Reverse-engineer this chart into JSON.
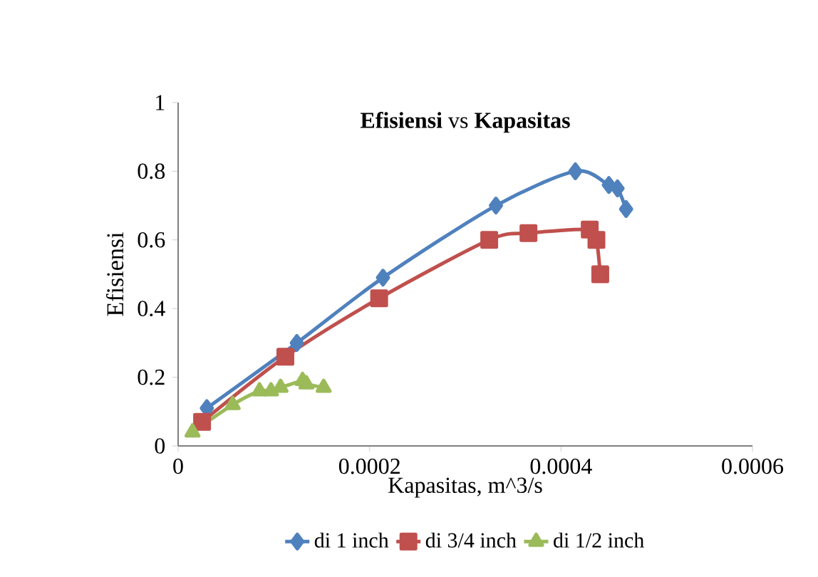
{
  "chart_data": {
    "type": "line",
    "title": "**Efisiensi** vs **Kapasitas**",
    "xlabel": "Kapasitas,  m^3/s",
    "ylabel": "Efisiensi",
    "xlim": [
      0,
      0.0006
    ],
    "xticks": [
      0,
      0.0002,
      0.0004,
      0.0006
    ],
    "ylim": [
      0,
      1
    ],
    "yticks": [
      0,
      0.2,
      0.4,
      0.6,
      0.8,
      1
    ],
    "grid": false,
    "legend": "bottom",
    "line_style": "solid",
    "series": [
      {
        "name": "di 1 inch",
        "color": "#4f81bd",
        "marker": "diamond",
        "x": [
          3e-05,
          0.000124,
          0.000214,
          0.000332,
          0.000415,
          0.00045,
          0.000459,
          0.000468
        ],
        "values": [
          0.11,
          0.3,
          0.49,
          0.7,
          0.8,
          0.76,
          0.75,
          0.69
        ]
      },
      {
        "name": "di 3/4 inch",
        "color": "#c0504d",
        "marker": "square",
        "x": [
          2.5e-05,
          0.000112,
          0.00021,
          0.000325,
          0.000366,
          0.00043,
          0.000437,
          0.000441
        ],
        "values": [
          0.07,
          0.26,
          0.43,
          0.6,
          0.62,
          0.63,
          0.6,
          0.5
        ]
      },
      {
        "name": "di 1/2 inch",
        "color": "#9bbb59",
        "marker": "triangle",
        "x": [
          1.5e-05,
          5.7e-05,
          8.5e-05,
          9.7e-05,
          0.000107,
          0.00013,
          0.000134,
          0.000152
        ],
        "values": [
          0.04,
          0.12,
          0.16,
          0.16,
          0.17,
          0.19,
          0.18,
          0.17
        ]
      }
    ]
  }
}
